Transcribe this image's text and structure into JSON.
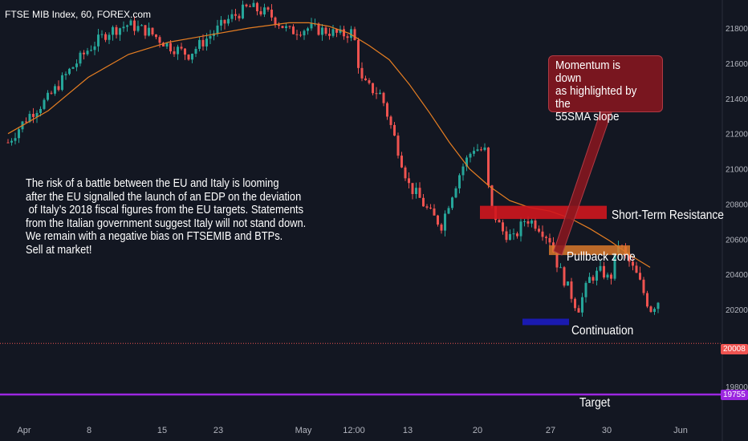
{
  "header": {
    "title": "FTSE MIB Index, 60, FOREX.com"
  },
  "annotations": {
    "commentary": [
      "The risk of a battle between the EU and Italy is looming",
      "after the EU signalled the launch of an EDP on the deviation",
      " of Italy’s 2018 fiscal figures from the EU targets. Statements",
      "from the Italian government suggest Italy will not stand down.",
      "",
      "We remain with a negative bias on FTSEMIB and BTPs.",
      "",
      "Sell at market!"
    ],
    "callout": "Momentum is down\nas highlighted by the\n55SMA slope",
    "resistance": "Short-Term Resistance",
    "pullback": "Pullback zone",
    "continuation": "Continuation",
    "target": "Target"
  },
  "price_tags": {
    "last": "20008",
    "target": "19755"
  },
  "colors": {
    "background": "#131722",
    "up": "#26a69a",
    "down": "#ef5350",
    "sma": "#e67e22",
    "resistance": "#d0161e",
    "pullback": "#d9782a",
    "continuation": "#1a1ab0",
    "target_line": "#9c27e0",
    "last_line": "#ef5350"
  },
  "chart_data": {
    "type": "candlestick",
    "title": "FTSE MIB Index, 60, FOREX.com",
    "x_ticks": [
      "Apr",
      "8",
      "15",
      "23",
      "May",
      "12:00",
      "13",
      "20",
      "27",
      "30",
      "Jun"
    ],
    "y_ticks": [
      21800,
      21600,
      21400,
      21200,
      21000,
      20800,
      20600,
      20400,
      20200,
      19800
    ],
    "ylim": [
      19700,
      21950
    ],
    "price_path": [
      [
        0,
        21150
      ],
      [
        0.5,
        21300
      ],
      [
        1,
        21400
      ],
      [
        1.5,
        21550
      ],
      [
        2,
        21680
      ],
      [
        2.5,
        21780
      ],
      [
        3,
        21820
      ],
      [
        3.5,
        21780
      ],
      [
        4,
        21700
      ],
      [
        4.5,
        21650
      ],
      [
        5,
        21750
      ],
      [
        5.5,
        21850
      ],
      [
        6,
        21920
      ],
      [
        6.5,
        21880
      ],
      [
        7,
        21780
      ],
      [
        7.5,
        21800
      ],
      [
        8,
        21780
      ],
      [
        8.3,
        21760
      ],
      [
        8.6,
        21780
      ],
      [
        8.8,
        21500
      ],
      [
        9,
        21460
      ],
      [
        9.3,
        21420
      ],
      [
        9.6,
        21200
      ],
      [
        9.8,
        21050
      ],
      [
        10,
        20900
      ],
      [
        10.2,
        20850
      ],
      [
        10.5,
        20750
      ],
      [
        10.8,
        20680
      ],
      [
        11,
        20820
      ],
      [
        11.3,
        21000
      ],
      [
        11.6,
        21120
      ],
      [
        11.9,
        21100
      ],
      [
        12,
        20800
      ],
      [
        12.3,
        20650
      ],
      [
        12.6,
        20600
      ],
      [
        12.9,
        20720
      ],
      [
        13.2,
        20680
      ],
      [
        13.5,
        20600
      ],
      [
        13.7,
        20450
      ],
      [
        14,
        20300
      ],
      [
        14.2,
        20200
      ],
      [
        14.5,
        20380
      ],
      [
        14.8,
        20420
      ],
      [
        15,
        20360
      ],
      [
        15.2,
        20580
      ],
      [
        15.4,
        20500
      ],
      [
        15.7,
        20380
      ],
      [
        16,
        20200
      ],
      [
        16.2,
        20250
      ]
    ],
    "sma55_path": [
      [
        0,
        21200
      ],
      [
        1,
        21330
      ],
      [
        2,
        21520
      ],
      [
        3,
        21650
      ],
      [
        4,
        21720
      ],
      [
        5,
        21760
      ],
      [
        6,
        21800
      ],
      [
        7,
        21830
      ],
      [
        7.5,
        21830
      ],
      [
        8,
        21810
      ],
      [
        8.5,
        21770
      ],
      [
        9,
        21700
      ],
      [
        9.5,
        21620
      ],
      [
        10,
        21480
      ],
      [
        10.5,
        21320
      ],
      [
        11,
        21150
      ],
      [
        11.5,
        21000
      ],
      [
        12,
        20900
      ],
      [
        12.5,
        20820
      ],
      [
        13,
        20780
      ],
      [
        13.5,
        20760
      ],
      [
        14,
        20720
      ],
      [
        14.5,
        20660
      ],
      [
        15,
        20590
      ],
      [
        15.5,
        20510
      ],
      [
        16,
        20440
      ]
    ],
    "levels": {
      "resistance": [
        20715,
        20790
      ],
      "pullback": [
        20510,
        20565
      ],
      "continuation": 20130,
      "last": 20008,
      "target": 19755
    }
  }
}
